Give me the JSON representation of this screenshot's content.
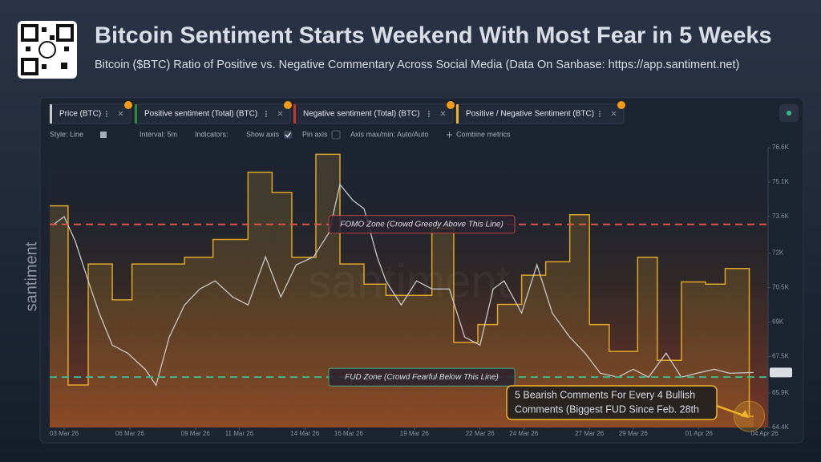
{
  "chart_data": {
    "type": "line",
    "title": "Bitcoin Sentiment Starts Weekend With Most Fear in 5 Weeks",
    "subtitle": "Bitcoin ($BTC) Ratio of Positive vs. Negative Commentary Across Social Media (Data On Sanbase: https://app.santiment.net)",
    "toolbar": [
      "Style: Line",
      "Interval: 5m",
      "Indicators:",
      "Show axis",
      "Pin axis",
      "Axis max/min: Auto/Auto",
      "Combine metrics"
    ],
    "watermark": "santiment",
    "grid": false,
    "series": [
      {
        "name": "Price (BTC)",
        "color": "#c9c9c9",
        "x": [
          -0.5,
          0,
          0.5,
          1.1,
          1.6,
          2.2,
          2.9,
          3.7,
          4.2,
          4.8,
          5.5,
          6.2,
          6.9,
          7.7,
          8.4,
          9.2,
          9.9,
          10.6,
          11.4,
          12.1,
          12.6,
          13.2,
          13.7,
          14.3,
          14.7,
          15.4,
          16.1,
          16.8,
          17.6,
          18.3,
          19.0,
          19.6,
          20.1,
          20.9,
          21.6,
          22.3,
          23.1,
          23.8,
          24.5,
          25.3,
          26.0,
          26.7,
          27.5,
          28.2,
          28.9,
          29.7,
          30.4,
          31.5
        ],
        "values": [
          73240,
          73590,
          72540,
          70790,
          69390,
          67990,
          67640,
          66940,
          66240,
          68340,
          69740,
          70440,
          70790,
          70090,
          69740,
          71840,
          70090,
          71490,
          71840,
          72890,
          74990,
          74290,
          73940,
          71840,
          70790,
          69740,
          70790,
          70440,
          70440,
          68340,
          67990,
          70440,
          70790,
          69390,
          71490,
          69390,
          68340,
          67640,
          66765,
          66590,
          66940,
          66590,
          67640,
          66590,
          66765,
          66940,
          66765,
          66800
        ]
      },
      {
        "name": "Positive sentiment (Total) (BTC)",
        "color": "#2e8b3e"
      },
      {
        "name": "Negative sentiment (Total) (BTC)",
        "color": "#c0392b"
      },
      {
        "name": "Positive / Negative Sentiment (BTC)",
        "color": "#f0b429",
        "axis": "y2",
        "bins": [
          -0.66,
          0.18,
          1.1,
          2.2,
          3.1,
          4.2,
          5.5,
          6.8,
          8.4,
          9.5,
          10.4,
          11.5,
          12.6,
          13.7,
          14.7,
          15.8,
          16.8,
          17.8,
          18.9,
          19.8,
          20.9,
          22.0,
          23.1,
          24.0,
          24.9,
          26.2,
          27.1,
          28.2,
          29.3,
          30.2,
          31.3,
          31.5
        ],
        "values": [
          1.74,
          0.94,
          1.48,
          1.32,
          1.48,
          1.48,
          1.51,
          1.59,
          1.89,
          1.8,
          1.51,
          1.97,
          1.48,
          1.39,
          1.34,
          1.34,
          1.64,
          1.13,
          1.21,
          1.3,
          1.43,
          1.49,
          1.7,
          1.21,
          1.09,
          1.51,
          1.05,
          1.4,
          1.39,
          1.46,
          0.8
        ]
      }
    ],
    "xlim": [
      -0.66,
      32.16
    ],
    "xticks": [
      {
        "value": 0,
        "label": "03 Mar 26"
      },
      {
        "value": 3,
        "label": "06 Mar 26"
      },
      {
        "value": 6,
        "label": "09 Mar 26"
      },
      {
        "value": 8,
        "label": "11 Mar 26"
      },
      {
        "value": 11,
        "label": "14 Mar 26"
      },
      {
        "value": 13,
        "label": "16 Mar 26"
      },
      {
        "value": 16,
        "label": "19 Mar 26"
      },
      {
        "value": 19,
        "label": "22 Mar 26"
      },
      {
        "value": 21,
        "label": "24 Mar 26"
      },
      {
        "value": 24,
        "label": "27 Mar 26"
      },
      {
        "value": 26,
        "label": "29 Mar 26"
      },
      {
        "value": 29,
        "label": "01 Apr 26"
      },
      {
        "value": 32,
        "label": "04 Apr 26"
      }
    ],
    "ylim": [
      64400,
      76600
    ],
    "yticks": [
      {
        "value": 64400,
        "label": "64.4K"
      },
      {
        "value": 65900,
        "label": "65.9K"
      },
      {
        "value": 67500,
        "label": "67.5K"
      },
      {
        "value": 69000,
        "label": "69K"
      },
      {
        "value": 70500,
        "label": "70.5K"
      },
      {
        "value": 72000,
        "label": "72K"
      },
      {
        "value": 73600,
        "label": "73.6K"
      },
      {
        "value": 75100,
        "label": "75.1K"
      },
      {
        "value": 76600,
        "label": "76.6K"
      }
    ],
    "current_price": {
      "value": 66800,
      "label": "66.8K"
    },
    "y2lim": [
      0.75,
      2.0
    ],
    "annotations": [
      {
        "text": "FOMO Zone (Crowd Greedy Above This Line)",
        "value": 1.657,
        "color": "#e0524a"
      },
      {
        "text": "FUD Zone (Crowd Fearful Below This Line)",
        "value": 0.975,
        "color": "#3fb88f"
      }
    ],
    "callout": [
      "5 Bearish Comments For Every 4 Bullish",
      "Comments (Biggest FUD Since Feb. 28th"
    ]
  }
}
